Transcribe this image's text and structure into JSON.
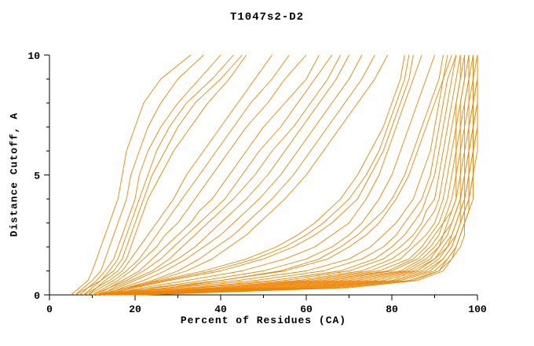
{
  "chart_data": {
    "type": "line",
    "title": "T1047s2-D2",
    "xlabel": "Percent of Residues (CA)",
    "ylabel": "Distance Cutoff, A",
    "xlim": [
      0,
      100
    ],
    "ylim": [
      0,
      10
    ],
    "x_ticks": [
      0,
      20,
      40,
      60,
      80,
      100
    ],
    "x_minor_ticks": [
      10,
      30,
      50,
      70,
      90
    ],
    "y_ticks": [
      0,
      5,
      10
    ],
    "y_minor_ticks": [
      1,
      2,
      3,
      4,
      6,
      7,
      8,
      9
    ],
    "grid": false,
    "legend": "none",
    "line_color": "#ef8500",
    "y_levels": [
      0,
      0.3,
      0.6,
      1,
      1.5,
      2,
      2.5,
      3,
      3.5,
      4,
      5,
      6,
      7,
      8,
      9,
      10
    ],
    "series": [
      {
        "x": [
          5,
          7,
          9,
          10,
          11,
          12,
          13,
          14,
          15,
          16,
          17,
          18,
          20,
          22,
          26,
          33
        ]
      },
      {
        "x": [
          6,
          8,
          10,
          12,
          13,
          14,
          15,
          16,
          17,
          18,
          19,
          21,
          23,
          26,
          30,
          36
        ]
      },
      {
        "x": [
          7,
          9,
          11,
          13,
          15,
          16,
          17,
          18,
          19,
          20,
          21,
          23,
          26,
          30,
          35,
          40
        ]
      },
      {
        "x": [
          8,
          10,
          12,
          14,
          16,
          17,
          18,
          19,
          20,
          21,
          23,
          25,
          28,
          32,
          38,
          43
        ]
      },
      {
        "x": [
          6,
          9,
          12,
          15,
          17,
          18,
          19,
          20,
          21,
          22,
          24,
          27,
          30,
          34,
          40,
          45
        ]
      },
      {
        "x": [
          9,
          11,
          13,
          16,
          18,
          19,
          20,
          21,
          22,
          23,
          26,
          29,
          33,
          37,
          42,
          46
        ]
      },
      {
        "x": [
          8,
          11,
          14,
          17,
          19,
          21,
          23,
          25,
          27,
          29,
          32,
          36,
          40,
          44,
          48,
          52
        ]
      },
      {
        "x": [
          9,
          12,
          15,
          18,
          21,
          23,
          25,
          27,
          29,
          31,
          35,
          39,
          43,
          47,
          52,
          56
        ]
      },
      {
        "x": [
          10,
          13,
          16,
          19,
          22,
          25,
          27,
          30,
          32,
          34,
          38,
          42,
          46,
          51,
          55,
          60
        ]
      },
      {
        "x": [
          11,
          14,
          17,
          21,
          24,
          27,
          30,
          33,
          35,
          38,
          42,
          46,
          50,
          55,
          60,
          63
        ]
      },
      {
        "x": [
          10,
          14,
          18,
          22,
          26,
          29,
          32,
          35,
          38,
          41,
          45,
          49,
          54,
          58,
          62,
          66
        ]
      },
      {
        "x": [
          12,
          15,
          19,
          24,
          28,
          31,
          34,
          37,
          40,
          43,
          48,
          52,
          57,
          61,
          65,
          68
        ]
      },
      {
        "x": [
          11,
          16,
          20,
          25,
          30,
          34,
          37,
          40,
          43,
          46,
          51,
          55,
          59,
          63,
          67,
          70
        ]
      },
      {
        "x": [
          13,
          17,
          22,
          27,
          32,
          36,
          40,
          43,
          46,
          49,
          54,
          58,
          62,
          66,
          70,
          73
        ]
      },
      {
        "x": [
          12,
          18,
          24,
          30,
          35,
          39,
          43,
          46,
          49,
          52,
          57,
          61,
          65,
          69,
          73,
          76
        ]
      },
      {
        "x": [
          14,
          19,
          25,
          32,
          38,
          42,
          46,
          49,
          52,
          55,
          60,
          64,
          68,
          72,
          76,
          79
        ]
      },
      {
        "x": [
          11,
          18,
          26,
          36,
          46,
          53,
          58,
          62,
          65,
          68,
          72,
          75,
          78,
          80,
          82,
          83
        ]
      },
      {
        "x": [
          12,
          20,
          28,
          40,
          50,
          57,
          62,
          66,
          69,
          72,
          75,
          78,
          80,
          82,
          84,
          85
        ]
      },
      {
        "x": [
          13,
          19,
          27,
          38,
          48,
          55,
          60,
          64,
          67,
          70,
          74,
          77,
          79,
          81,
          83,
          84
        ]
      },
      {
        "x": [
          13,
          22,
          32,
          45,
          55,
          62,
          66,
          70,
          72,
          74,
          77,
          79,
          81,
          83,
          85,
          87
        ]
      },
      {
        "x": [
          14,
          24,
          36,
          50,
          60,
          66,
          70,
          73,
          75,
          77,
          80,
          82,
          84,
          86,
          88,
          90
        ]
      },
      {
        "x": [
          15,
          28,
          40,
          54,
          63,
          68,
          72,
          75,
          78,
          80,
          83,
          85,
          87,
          89,
          91,
          92
        ]
      },
      {
        "x": [
          10,
          25,
          40,
          55,
          65,
          70,
          74,
          77,
          79,
          81,
          84,
          86,
          88,
          90,
          92,
          93
        ]
      },
      {
        "x": [
          11,
          28,
          44,
          60,
          70,
          75,
          78,
          81,
          83,
          85,
          87,
          89,
          90,
          91,
          92,
          94
        ]
      },
      {
        "x": [
          12,
          30,
          48,
          64,
          73,
          78,
          81,
          83,
          85,
          87,
          89,
          90,
          91,
          92,
          93,
          95
        ]
      },
      {
        "x": [
          13,
          33,
          52,
          68,
          76,
          80,
          83,
          85,
          87,
          88,
          90,
          91,
          92,
          93,
          94,
          95
        ]
      },
      {
        "x": [
          12,
          35,
          55,
          70,
          78,
          82,
          85,
          87,
          88,
          90,
          91,
          92,
          93,
          94,
          95,
          96
        ]
      },
      {
        "x": [
          14,
          38,
          58,
          73,
          80,
          84,
          86,
          88,
          90,
          91,
          92,
          93,
          94,
          95,
          96,
          96
        ]
      },
      {
        "x": [
          13,
          40,
          60,
          75,
          82,
          85,
          88,
          90,
          91,
          92,
          93,
          94,
          95,
          95,
          96,
          97
        ]
      },
      {
        "x": [
          15,
          42,
          62,
          77,
          84,
          87,
          89,
          91,
          92,
          93,
          94,
          95,
          95,
          96,
          97,
          97
        ]
      },
      {
        "x": [
          14,
          44,
          64,
          79,
          85,
          88,
          90,
          92,
          93,
          94,
          95,
          95,
          96,
          96,
          97,
          98
        ]
      },
      {
        "x": [
          16,
          46,
          66,
          80,
          86,
          89,
          91,
          92,
          94,
          95,
          95,
          96,
          96,
          97,
          98,
          98
        ]
      },
      {
        "x": [
          15,
          48,
          68,
          82,
          87,
          90,
          92,
          93,
          94,
          95,
          96,
          96,
          97,
          97,
          98,
          98
        ]
      },
      {
        "x": [
          17,
          50,
          70,
          83,
          88,
          91,
          92,
          94,
          95,
          96,
          96,
          97,
          97,
          98,
          98,
          99
        ]
      },
      {
        "x": [
          16,
          52,
          72,
          84,
          89,
          91,
          93,
          94,
          95,
          96,
          97,
          97,
          98,
          98,
          99,
          99
        ]
      },
      {
        "x": [
          18,
          54,
          74,
          85,
          90,
          92,
          94,
          95,
          96,
          96,
          97,
          98,
          98,
          99,
          99,
          99
        ]
      },
      {
        "x": [
          17,
          56,
          76,
          86,
          90,
          93,
          94,
          95,
          96,
          97,
          97,
          98,
          98,
          99,
          99,
          100
        ]
      },
      {
        "x": [
          19,
          58,
          78,
          87,
          91,
          93,
          95,
          96,
          96,
          97,
          98,
          98,
          99,
          99,
          100,
          100
        ]
      },
      {
        "x": [
          18,
          60,
          80,
          88,
          92,
          94,
          95,
          96,
          97,
          97,
          98,
          98,
          99,
          99,
          100,
          100
        ]
      },
      {
        "x": [
          20,
          62,
          81,
          89,
          92,
          94,
          95,
          96,
          97,
          98,
          98,
          99,
          99,
          100,
          100,
          100
        ]
      },
      {
        "x": [
          19,
          64,
          82,
          90,
          93,
          95,
          96,
          97,
          97,
          98,
          98,
          99,
          99,
          100,
          100,
          100
        ]
      },
      {
        "x": [
          21,
          66,
          84,
          91,
          93,
          95,
          96,
          97,
          98,
          98,
          99,
          99,
          100,
          100,
          100,
          100
        ]
      },
      {
        "x": [
          20,
          68,
          85,
          91,
          94,
          95,
          96,
          97,
          98,
          98,
          99,
          99,
          100,
          100,
          100,
          100
        ]
      },
      {
        "x": [
          22,
          70,
          86,
          92,
          94,
          96,
          97,
          97,
          98,
          99,
          99,
          100,
          100,
          100,
          100,
          100
        ]
      }
    ]
  }
}
